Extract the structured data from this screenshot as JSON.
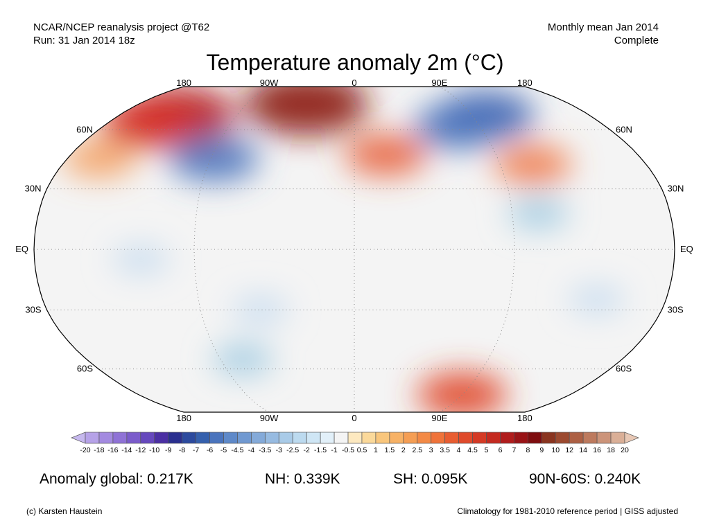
{
  "header": {
    "left_line1": "NCAR/NCEP reanalysis project @T62",
    "left_line2": "Run: 31 Jan 2014 18z",
    "right_line1": "Monthly mean Jan 2014",
    "right_line2": "Complete"
  },
  "title": "Temperature anomaly 2m (°C)",
  "map": {
    "projection": "Robinson",
    "lon_labels": [
      "180",
      "90W",
      "0",
      "90E",
      "180"
    ],
    "lat_labels": [
      "60N",
      "30N",
      "EQ",
      "30S",
      "60S"
    ],
    "regions": [
      {
        "name": "arctic-canada-warm",
        "lon": -135,
        "lat": 68,
        "value": 8,
        "color": "#b01820"
      },
      {
        "name": "alaska-warm",
        "lon": -150,
        "lat": 64,
        "value": 6,
        "color": "#d73027"
      },
      {
        "name": "greenland-warm",
        "lon": -40,
        "lat": 75,
        "value": 9,
        "color": "#8b1a10"
      },
      {
        "name": "east-siberia-cold",
        "lon": 100,
        "lat": 68,
        "value": -6,
        "color": "#3a5fb0"
      },
      {
        "name": "siberia-cold",
        "lon": 75,
        "lat": 62,
        "value": -5,
        "color": "#4a74bd"
      },
      {
        "name": "north-america-cold",
        "lon": -88,
        "lat": 45,
        "value": -5,
        "color": "#4a74bd"
      },
      {
        "name": "europe-warm",
        "lon": 20,
        "lat": 47,
        "value": 4,
        "color": "#e8613c"
      },
      {
        "name": "east-asia-warm",
        "lon": 110,
        "lat": 42,
        "value": 3.5,
        "color": "#ef7a4a"
      },
      {
        "name": "north-pacific-warm",
        "lon": -160,
        "lat": 45,
        "value": 3,
        "color": "#f4a060"
      },
      {
        "name": "antarctica-warm",
        "lon": 90,
        "lat": -75,
        "value": 5,
        "color": "#e0452a"
      },
      {
        "name": "southern-ocean-cool",
        "lon": -75,
        "lat": -55,
        "value": -1.5,
        "color": "#9ecae1"
      },
      {
        "name": "tropical-pacific-cool",
        "lon": -120,
        "lat": -5,
        "value": -1,
        "color": "#c6dbef"
      },
      {
        "name": "australia-cool",
        "lon": 140,
        "lat": -25,
        "value": -1,
        "color": "#c6dbef"
      },
      {
        "name": "south-america-cool",
        "lon": -55,
        "lat": -30,
        "value": -1,
        "color": "#c6dbef"
      },
      {
        "name": "southeast-asia-cool",
        "lon": 105,
        "lat": 18,
        "value": -1.5,
        "color": "#9ecae1"
      }
    ]
  },
  "colorbar": {
    "labels": [
      "-20",
      "-18",
      "-16",
      "-14",
      "-12",
      "-10",
      "-9",
      "-8",
      "-7",
      "-6",
      "-5",
      "-4.5",
      "-4",
      "-3.5",
      "-3",
      "-2.5",
      "-2",
      "-1.5",
      "-1",
      "-0.5",
      "0.5",
      "1",
      "1.5",
      "2",
      "2.5",
      "3",
      "3.5",
      "4",
      "4.5",
      "5",
      "6",
      "7",
      "8",
      "9",
      "10",
      "12",
      "14",
      "16",
      "18",
      "20"
    ],
    "colors": [
      "#c6b8ee",
      "#b6a2e8",
      "#a38ae0",
      "#8f72d6",
      "#7b5ccb",
      "#6648bd",
      "#4b2fa3",
      "#2a2f8f",
      "#2c4a9e",
      "#3560ad",
      "#4a74bd",
      "#5e89c9",
      "#7099d1",
      "#84aad9",
      "#97bbe1",
      "#a9cbe8",
      "#bcdaef",
      "#cfe6f5",
      "#e2f0f9",
      "#f4f4f4",
      "#fde9c0",
      "#fbd99a",
      "#f9c67c",
      "#f7b266",
      "#f59e54",
      "#f38a46",
      "#ef733a",
      "#e85d31",
      "#df4a2b",
      "#d43a25",
      "#c42a20",
      "#b01c1c",
      "#991316",
      "#7e0d0f",
      "#8a3520",
      "#9c4a30",
      "#ad6044",
      "#bd7a5e",
      "#cc947a",
      "#daaf97",
      "#e8c8b5"
    ]
  },
  "stats": {
    "global": "Anomaly global: 0.217K",
    "nh": "NH: 0.339K",
    "sh": "SH: 0.095K",
    "arctic": "90N-60S: 0.240K"
  },
  "footer": {
    "left": "(c) Karsten Haustein",
    "right": "Climatology for 1981-2010 reference period | GISS adjusted"
  }
}
